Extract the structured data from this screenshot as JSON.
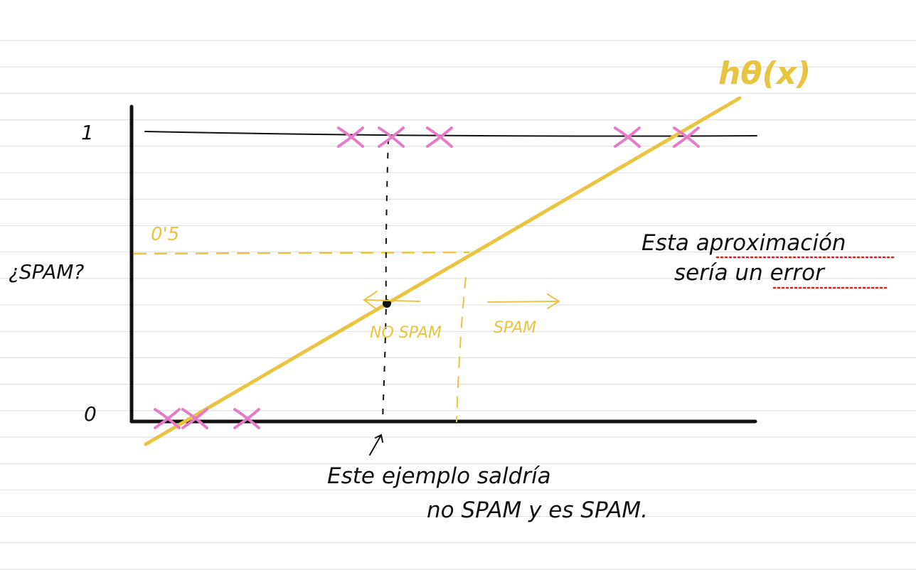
{
  "labels": {
    "y_one": "1",
    "y_half": "0'5",
    "y_zero": "0",
    "y_axis_question": "¿SPAM?",
    "hypothesis": "hθ(x)",
    "no_spam": "NO SPAM",
    "spam": "SPAM",
    "note_line1": "Esta aproximación",
    "note_line2": "sería un error",
    "example_line1": "Este ejemplo saldría",
    "example_line2": "no SPAM y es SPAM."
  },
  "colors": {
    "ink": "#111111",
    "hypothesis": "#e8c440",
    "marks": "#e57bc6",
    "ruled_lines": "#dcdcdc",
    "spellcheck": "#e02020"
  },
  "marks_top_count": 5,
  "marks_bottom_count": 3
}
